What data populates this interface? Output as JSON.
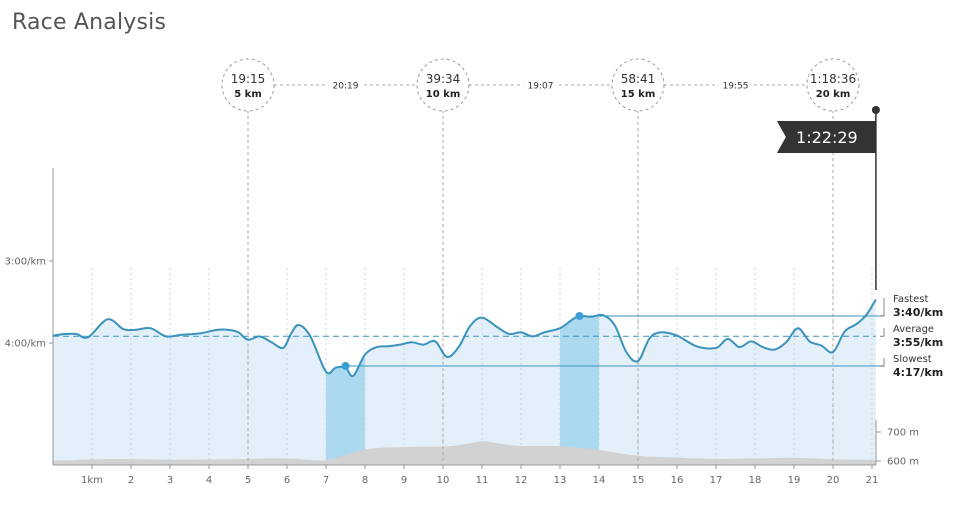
{
  "page": {
    "title": "Race Analysis"
  },
  "chart_data": {
    "type": "line",
    "title": "Race Analysis",
    "x_unit": "km",
    "x_range": [
      0,
      21.1
    ],
    "x_ticks": [
      {
        "v": 1,
        "label": "1km"
      },
      {
        "v": 2,
        "label": "2"
      },
      {
        "v": 3,
        "label": "3"
      },
      {
        "v": 4,
        "label": "4"
      },
      {
        "v": 5,
        "label": "5"
      },
      {
        "v": 6,
        "label": "6"
      },
      {
        "v": 7,
        "label": "7"
      },
      {
        "v": 8,
        "label": "8"
      },
      {
        "v": 9,
        "label": "9"
      },
      {
        "v": 10,
        "label": "10"
      },
      {
        "v": 11,
        "label": "11"
      },
      {
        "v": 12,
        "label": "12"
      },
      {
        "v": 13,
        "label": "13"
      },
      {
        "v": 14,
        "label": "14"
      },
      {
        "v": 15,
        "label": "15"
      },
      {
        "v": 16,
        "label": "16"
      },
      {
        "v": 17,
        "label": "17"
      },
      {
        "v": 18,
        "label": "18"
      },
      {
        "v": 19,
        "label": "19"
      },
      {
        "v": 20,
        "label": "20"
      },
      {
        "v": 21,
        "label": "21"
      }
    ],
    "pace_axis": {
      "unit": "min/km",
      "inverted": true,
      "ticks": [
        {
          "v": 3.0,
          "label": "3:00/km"
        },
        {
          "v": 4.0,
          "label": "4:00/km"
        }
      ]
    },
    "elevation_axis": {
      "unit": "m",
      "ticks": [
        {
          "v": 600,
          "label": "600 m"
        },
        {
          "v": 700,
          "label": "700 m"
        }
      ]
    },
    "pace_series": {
      "color": "#3a93bd",
      "fill": "#e4f0f9",
      "points": [
        [
          0,
          3.91
        ],
        [
          0.3,
          3.89
        ],
        [
          0.6,
          3.89
        ],
        [
          0.9,
          3.93
        ],
        [
          1.4,
          3.71
        ],
        [
          1.8,
          3.83
        ],
        [
          2.1,
          3.84
        ],
        [
          2.5,
          3.82
        ],
        [
          2.9,
          3.92
        ],
        [
          3.3,
          3.9
        ],
        [
          3.8,
          3.88
        ],
        [
          4.2,
          3.84
        ],
        [
          4.5,
          3.84
        ],
        [
          4.75,
          3.87
        ],
        [
          5.0,
          3.96
        ],
        [
          5.3,
          3.92
        ],
        [
          5.6,
          3.99
        ],
        [
          5.9,
          4.06
        ],
        [
          6.1,
          3.89
        ],
        [
          6.3,
          3.78
        ],
        [
          6.6,
          3.92
        ],
        [
          7.0,
          4.35
        ],
        [
          7.25,
          4.3
        ],
        [
          7.5,
          4.3
        ],
        [
          7.7,
          4.4
        ],
        [
          8.0,
          4.14
        ],
        [
          8.3,
          4.05
        ],
        [
          8.6,
          4.04
        ],
        [
          8.9,
          4.02
        ],
        [
          9.2,
          3.99
        ],
        [
          9.5,
          4.02
        ],
        [
          9.8,
          3.98
        ],
        [
          10.1,
          4.17
        ],
        [
          10.4,
          4.05
        ],
        [
          10.7,
          3.79
        ],
        [
          11.0,
          3.69
        ],
        [
          11.4,
          3.81
        ],
        [
          11.7,
          3.89
        ],
        [
          12.0,
          3.87
        ],
        [
          12.3,
          3.92
        ],
        [
          12.6,
          3.87
        ],
        [
          13.0,
          3.82
        ],
        [
          13.3,
          3.72
        ],
        [
          13.5,
          3.67
        ],
        [
          13.8,
          3.68
        ],
        [
          14.1,
          3.66
        ],
        [
          14.4,
          3.78
        ],
        [
          14.7,
          4.11
        ],
        [
          15.0,
          4.22
        ],
        [
          15.3,
          3.94
        ],
        [
          15.6,
          3.87
        ],
        [
          16.0,
          3.91
        ],
        [
          16.5,
          4.04
        ],
        [
          17.0,
          4.06
        ],
        [
          17.3,
          3.95
        ],
        [
          17.6,
          4.05
        ],
        [
          17.9,
          3.98
        ],
        [
          18.2,
          4.05
        ],
        [
          18.5,
          4.08
        ],
        [
          18.8,
          3.99
        ],
        [
          19.1,
          3.82
        ],
        [
          19.4,
          3.98
        ],
        [
          19.7,
          4.03
        ],
        [
          20.0,
          4.11
        ],
        [
          20.3,
          3.86
        ],
        [
          20.6,
          3.77
        ],
        [
          20.85,
          3.66
        ],
        [
          21.1,
          3.47
        ]
      ]
    },
    "elevation_series": {
      "color": "#d2d2d2",
      "points": [
        [
          0,
          601
        ],
        [
          1.5,
          607
        ],
        [
          3.0,
          605
        ],
        [
          4.5,
          606
        ],
        [
          6.0,
          609
        ],
        [
          7.0,
          603
        ],
        [
          8.0,
          640
        ],
        [
          9.0,
          648
        ],
        [
          10.0,
          650
        ],
        [
          10.5,
          656
        ],
        [
          11.0,
          668
        ],
        [
          11.5,
          659
        ],
        [
          12.0,
          652
        ],
        [
          13.0,
          651
        ],
        [
          14.0,
          638
        ],
        [
          15.0,
          618
        ],
        [
          16.0,
          612
        ],
        [
          17.0,
          607
        ],
        [
          18.0,
          609
        ],
        [
          19.0,
          611
        ],
        [
          20.0,
          606
        ],
        [
          21.1,
          603
        ]
      ]
    },
    "highlight_bands": [
      {
        "from": 7.0,
        "to": 8.0,
        "role": "slowest",
        "marker_km": 7.5,
        "marker_pace": 4.28
      },
      {
        "from": 13.0,
        "to": 14.0,
        "role": "fastest",
        "marker_km": 13.5,
        "marker_pace": 3.67
      }
    ],
    "average_pace": 3.917,
    "stats": [
      {
        "label": "Fastest",
        "value": "3:40/km",
        "pace": 3.667
      },
      {
        "label": "Average",
        "value": "3:55/km",
        "pace": 3.917
      },
      {
        "label": "Slowest",
        "value": "4:17/km",
        "pace": 4.283
      }
    ],
    "splits": [
      {
        "km_value": 5,
        "time": "19:15",
        "km": "5 km"
      },
      {
        "km_value": 10,
        "time": "39:34",
        "km": "10 km"
      },
      {
        "km_value": 15,
        "time": "58:41",
        "km": "15 km"
      },
      {
        "km_value": 20,
        "time": "1:18:36",
        "km": "20 km"
      }
    ],
    "segment_times": [
      "20:19",
      "19:07",
      "19:55"
    ],
    "finish": {
      "time": "1:22:29",
      "km_value": 21.1
    }
  }
}
